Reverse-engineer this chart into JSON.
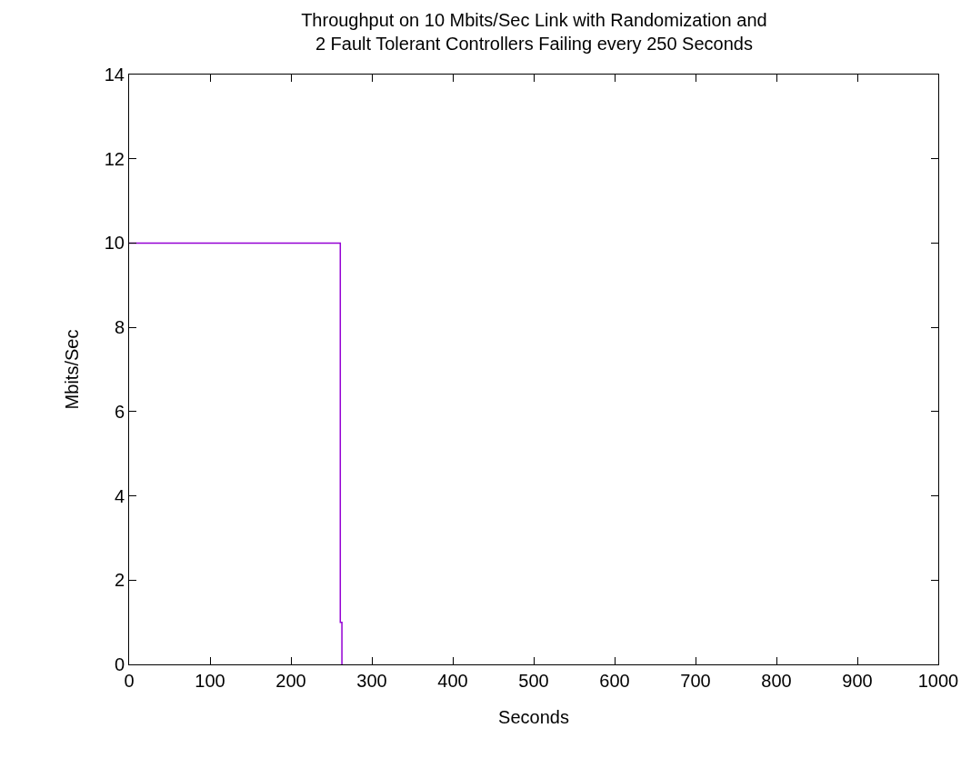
{
  "chart_data": {
    "type": "line",
    "title": "Throughput on 10 Mbits/Sec Link with Randomization and\n2 Fault Tolerant Controllers Failing every 250 Seconds",
    "xlabel": "Seconds",
    "ylabel": "Mbits/Sec",
    "x": [
      0,
      261,
      261,
      263,
      263
    ],
    "series": [
      {
        "color": "#9400d3",
        "values": [
          10,
          10,
          1,
          1,
          0
        ]
      }
    ],
    "xlim": [
      0,
      1000
    ],
    "xticks": [
      0,
      100,
      200,
      300,
      400,
      500,
      600,
      700,
      800,
      900,
      1000
    ],
    "ylim": [
      0,
      14
    ],
    "yticks": [
      0,
      2,
      4,
      6,
      8,
      10,
      12,
      14
    ],
    "legend": false,
    "marker": "none",
    "line_style": "solid"
  }
}
